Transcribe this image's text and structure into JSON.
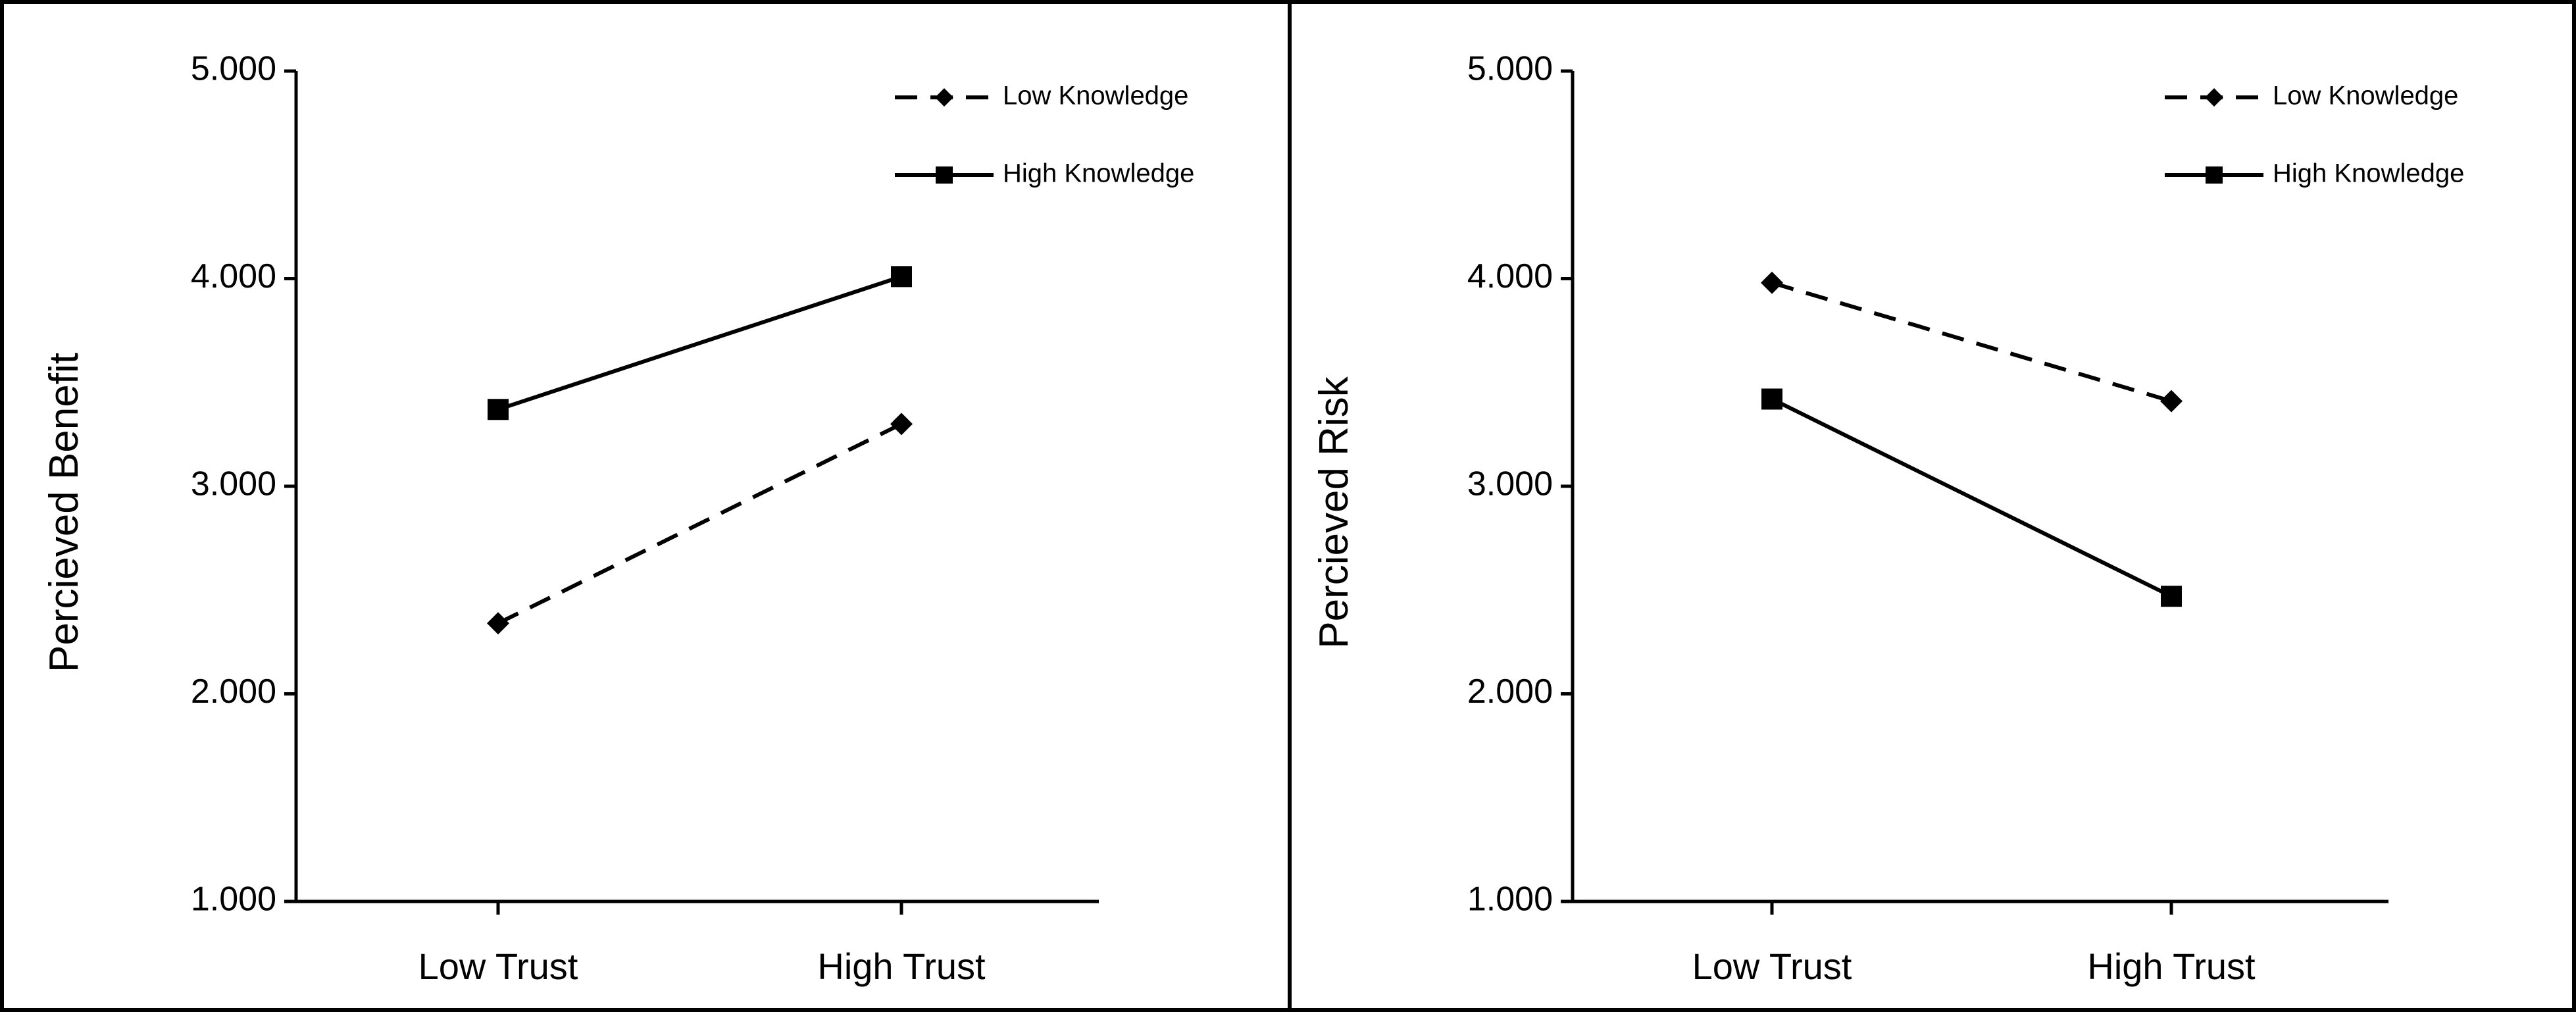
{
  "chart_data": [
    {
      "type": "line",
      "title": "",
      "xlabel": "",
      "ylabel": "Percieved Benefit",
      "categories": [
        "Low Trust",
        "High Trust"
      ],
      "ylim": [
        1,
        5
      ],
      "yticks": [
        "1.000",
        "2.000",
        "3.000",
        "4.000",
        "5.000"
      ],
      "yticks_values": [
        1,
        2,
        3,
        4,
        5
      ],
      "grid": false,
      "legend_position": "top-right",
      "series": [
        {
          "name": "Low Knowledge",
          "values": [
            2.34,
            3.3
          ],
          "style": "dashed",
          "marker": "diamond",
          "color": "#000000"
        },
        {
          "name": "High Knowledge",
          "values": [
            3.37,
            4.01
          ],
          "style": "solid",
          "marker": "square",
          "color": "#000000"
        }
      ]
    },
    {
      "type": "line",
      "title": "",
      "xlabel": "",
      "ylabel": "Percieved Risk",
      "categories": [
        "Low Trust",
        "High Trust"
      ],
      "ylim": [
        1,
        5
      ],
      "yticks": [
        "1.000",
        "2.000",
        "3.000",
        "4.000",
        "5.000"
      ],
      "yticks_values": [
        1,
        2,
        3,
        4,
        5
      ],
      "grid": false,
      "legend_position": "top-right",
      "series": [
        {
          "name": "Low Knowledge",
          "values": [
            3.98,
            3.41
          ],
          "style": "dashed",
          "marker": "diamond",
          "color": "#000000"
        },
        {
          "name": "High Knowledge",
          "values": [
            3.42,
            2.47
          ],
          "style": "solid",
          "marker": "square",
          "color": "#000000"
        }
      ]
    }
  ]
}
